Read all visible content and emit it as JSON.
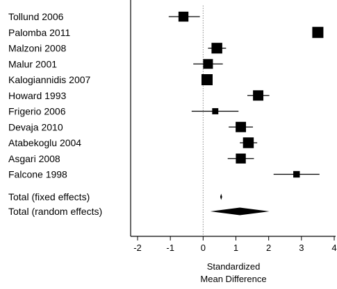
{
  "chart_data": {
    "type": "forest",
    "title": "",
    "xlabel": [
      "Standardized",
      "Mean Difference"
    ],
    "ylabel": "",
    "xlim": [
      -2,
      4
    ],
    "x_ticks": [
      -2,
      -1,
      0,
      1,
      2,
      3,
      4
    ],
    "reference_line_x": 0,
    "grid": false,
    "legend": "none",
    "studies": [
      {
        "label": "Tollund 2006",
        "estimate": -0.6,
        "ci_low": -1.05,
        "ci_high": -0.1,
        "weight": 0.85
      },
      {
        "label": "Palomba 2011",
        "estimate": 3.5,
        "ci_low": 3.35,
        "ci_high": 3.62,
        "weight": 1.0
      },
      {
        "label": "Malzoni 2008",
        "estimate": 0.42,
        "ci_low": 0.15,
        "ci_high": 0.7,
        "weight": 0.95
      },
      {
        "label": "Malur 2001",
        "estimate": 0.15,
        "ci_low": -0.3,
        "ci_high": 0.6,
        "weight": 0.82
      },
      {
        "label": "Kalogiannidis 2007",
        "estimate": 0.12,
        "ci_low": 0.0,
        "ci_high": 0.27,
        "weight": 1.0
      },
      {
        "label": "Howard 1993",
        "estimate": 1.68,
        "ci_low": 1.35,
        "ci_high": 2.02,
        "weight": 0.9
      },
      {
        "label": "Frigerio 2006",
        "estimate": 0.37,
        "ci_low": -0.35,
        "ci_high": 1.08,
        "weight": 0.35
      },
      {
        "label": "Devaja 2010",
        "estimate": 1.15,
        "ci_low": 0.78,
        "ci_high": 1.52,
        "weight": 0.9
      },
      {
        "label": "Atabekoglu 2004",
        "estimate": 1.38,
        "ci_low": 1.12,
        "ci_high": 1.65,
        "weight": 0.95
      },
      {
        "label": "Asgari 2008",
        "estimate": 1.15,
        "ci_low": 0.75,
        "ci_high": 1.55,
        "weight": 0.85
      },
      {
        "label": "Falcone 1998",
        "estimate": 2.85,
        "ci_low": 2.15,
        "ci_high": 3.55,
        "weight": 0.4
      }
    ],
    "totals": [
      {
        "label": "Total (fixed effects)",
        "estimate": 0.55,
        "ci_low": 0.52,
        "ci_high": 0.58
      },
      {
        "label": "Total (random effects)",
        "estimate": 1.12,
        "ci_low": 0.22,
        "ci_high": 2.02
      }
    ]
  },
  "colors": {
    "marker": "#000000",
    "axis": "#000000",
    "reference_line": "#8c8c8c",
    "background": "#ffffff"
  }
}
